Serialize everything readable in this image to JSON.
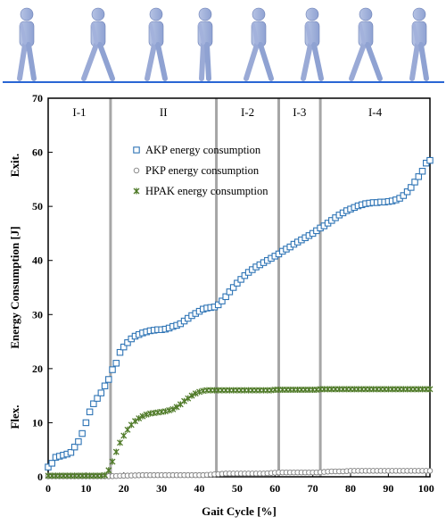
{
  "chart_data": {
    "type": "scatter",
    "xlabel": "Gait Cycle [%]",
    "ylabel": "Energy Consumption [J]",
    "ylabel_top": "Exit.",
    "ylabel_bottom": "Flex.",
    "xlim": [
      0,
      101
    ],
    "ylim": [
      0,
      70
    ],
    "xticks": [
      0,
      10,
      20,
      30,
      40,
      50,
      60,
      70,
      80,
      90,
      100
    ],
    "yticks": [
      0,
      10,
      20,
      30,
      40,
      50,
      60,
      70
    ],
    "grid": false,
    "legend_position": "upper-left",
    "phases": [
      {
        "label": "I-1",
        "start": 0,
        "end": 16.5
      },
      {
        "label": "II",
        "start": 16.5,
        "end": 44.5
      },
      {
        "label": "I-2",
        "start": 44.5,
        "end": 61
      },
      {
        "label": "I-3",
        "start": 61,
        "end": 72
      },
      {
        "label": "I-4",
        "start": 72,
        "end": 101
      }
    ],
    "phase_boundaries": [
      16.5,
      44.5,
      61,
      72
    ],
    "series": [
      {
        "name": "AKP energy consumption",
        "marker": "square",
        "color": "#2e74b5",
        "x": [
          0,
          1,
          2,
          3,
          4,
          5,
          6,
          7,
          8,
          9,
          10,
          11,
          12,
          13,
          14,
          15,
          16,
          17,
          18,
          19,
          20,
          21,
          22,
          23,
          24,
          25,
          26,
          27,
          28,
          29,
          30,
          31,
          32,
          33,
          34,
          35,
          36,
          37,
          38,
          39,
          40,
          41,
          42,
          43,
          44,
          45,
          46,
          47,
          48,
          49,
          50,
          51,
          52,
          53,
          54,
          55,
          56,
          57,
          58,
          59,
          60,
          61,
          62,
          63,
          64,
          65,
          66,
          67,
          68,
          69,
          70,
          71,
          72,
          73,
          74,
          75,
          76,
          77,
          78,
          79,
          80,
          81,
          82,
          83,
          84,
          85,
          86,
          87,
          88,
          89,
          90,
          91,
          92,
          93,
          94,
          95,
          96,
          97,
          98,
          99,
          100,
          101
        ],
        "y": [
          1.8,
          2.5,
          3.6,
          3.8,
          4.0,
          4.2,
          4.5,
          5.5,
          6.5,
          8.0,
          10.0,
          12.0,
          13.5,
          14.5,
          15.5,
          16.8,
          18.0,
          19.8,
          21.0,
          23.0,
          24.0,
          24.8,
          25.5,
          26.0,
          26.3,
          26.6,
          26.8,
          27.0,
          27.1,
          27.2,
          27.2,
          27.3,
          27.5,
          27.8,
          28.0,
          28.3,
          28.8,
          29.3,
          29.8,
          30.2,
          30.6,
          31.0,
          31.2,
          31.3,
          31.4,
          31.8,
          32.5,
          33.3,
          34.2,
          35.0,
          35.8,
          36.5,
          37.2,
          37.8,
          38.3,
          38.8,
          39.2,
          39.6,
          40.0,
          40.4,
          40.8,
          41.2,
          41.7,
          42.1,
          42.5,
          43.0,
          43.4,
          43.8,
          44.2,
          44.6,
          45.0,
          45.5,
          46.0,
          46.4,
          46.9,
          47.4,
          47.9,
          48.4,
          48.8,
          49.2,
          49.5,
          49.8,
          50.1,
          50.3,
          50.5,
          50.6,
          50.7,
          50.7,
          50.8,
          50.8,
          50.9,
          51.0,
          51.2,
          51.5,
          52.0,
          52.7,
          53.5,
          54.5,
          55.5,
          56.5,
          58.0,
          58.5
        ]
      },
      {
        "name": "PKP energy consumption",
        "marker": "circle",
        "color": "#7f7f7f",
        "x": [
          0,
          1,
          2,
          3,
          4,
          5,
          6,
          7,
          8,
          9,
          10,
          11,
          12,
          13,
          14,
          15,
          16,
          17,
          18,
          19,
          20,
          21,
          22,
          23,
          24,
          25,
          26,
          27,
          28,
          29,
          30,
          31,
          32,
          33,
          34,
          35,
          36,
          37,
          38,
          39,
          40,
          41,
          42,
          43,
          44,
          45,
          46,
          47,
          48,
          49,
          50,
          51,
          52,
          53,
          54,
          55,
          56,
          57,
          58,
          59,
          60,
          61,
          62,
          63,
          64,
          65,
          66,
          67,
          68,
          69,
          70,
          71,
          72,
          73,
          74,
          75,
          76,
          77,
          78,
          79,
          80,
          81,
          82,
          83,
          84,
          85,
          86,
          87,
          88,
          89,
          90,
          91,
          92,
          93,
          94,
          95,
          96,
          97,
          98,
          99,
          100,
          101
        ],
        "y": [
          0.1,
          0.1,
          0.1,
          0.1,
          0.1,
          0.1,
          0.1,
          0.1,
          0.1,
          0.1,
          0.1,
          0.1,
          0.1,
          0.1,
          0.1,
          0.1,
          0.1,
          0.12,
          0.15,
          0.18,
          0.2,
          0.22,
          0.24,
          0.26,
          0.28,
          0.3,
          0.3,
          0.3,
          0.3,
          0.3,
          0.3,
          0.3,
          0.3,
          0.3,
          0.3,
          0.3,
          0.3,
          0.3,
          0.3,
          0.3,
          0.3,
          0.3,
          0.35,
          0.4,
          0.45,
          0.5,
          0.55,
          0.6,
          0.6,
          0.6,
          0.6,
          0.6,
          0.6,
          0.6,
          0.6,
          0.6,
          0.6,
          0.6,
          0.65,
          0.7,
          0.75,
          0.8,
          0.8,
          0.8,
          0.8,
          0.8,
          0.8,
          0.8,
          0.8,
          0.8,
          0.8,
          0.8,
          0.85,
          0.9,
          0.95,
          1.0,
          1.0,
          1.0,
          1.0,
          1.05,
          1.1,
          1.1,
          1.1,
          1.1,
          1.1,
          1.1,
          1.1,
          1.1,
          1.1,
          1.1,
          1.1,
          1.1,
          1.1,
          1.1,
          1.1,
          1.1,
          1.1,
          1.1,
          1.1,
          1.1,
          1.1,
          1.1
        ]
      },
      {
        "name": "HPAK energy consumption",
        "marker": "star",
        "color": "#4f7a28",
        "x": [
          0,
          1,
          2,
          3,
          4,
          5,
          6,
          7,
          8,
          9,
          10,
          11,
          12,
          13,
          14,
          15,
          16,
          17,
          18,
          19,
          20,
          21,
          22,
          23,
          24,
          25,
          26,
          27,
          28,
          29,
          30,
          31,
          32,
          33,
          34,
          35,
          36,
          37,
          38,
          39,
          40,
          41,
          42,
          43,
          44,
          45,
          46,
          47,
          48,
          49,
          50,
          51,
          52,
          53,
          54,
          55,
          56,
          57,
          58,
          59,
          60,
          61,
          62,
          63,
          64,
          65,
          66,
          67,
          68,
          69,
          70,
          71,
          72,
          73,
          74,
          75,
          76,
          77,
          78,
          79,
          80,
          81,
          82,
          83,
          84,
          85,
          86,
          87,
          88,
          89,
          90,
          91,
          92,
          93,
          94,
          95,
          96,
          97,
          98,
          99,
          100,
          101
        ],
        "y": [
          0.2,
          0.2,
          0.2,
          0.2,
          0.2,
          0.2,
          0.2,
          0.2,
          0.2,
          0.2,
          0.2,
          0.2,
          0.2,
          0.2,
          0.2,
          0.3,
          1.2,
          2.8,
          4.6,
          6.3,
          7.6,
          8.7,
          9.6,
          10.3,
          10.8,
          11.2,
          11.5,
          11.7,
          11.8,
          11.9,
          12.0,
          12.1,
          12.3,
          12.5,
          12.9,
          13.4,
          14.0,
          14.5,
          15.0,
          15.4,
          15.7,
          15.9,
          16.0,
          16.0,
          16.0,
          16.0,
          16.0,
          16.0,
          16.0,
          16.0,
          16.0,
          16.0,
          16.0,
          16.0,
          16.0,
          16.0,
          16.0,
          16.0,
          16.0,
          16.0,
          16.1,
          16.1,
          16.1,
          16.1,
          16.1,
          16.1,
          16.1,
          16.1,
          16.1,
          16.1,
          16.1,
          16.1,
          16.2,
          16.2,
          16.2,
          16.2,
          16.2,
          16.2,
          16.2,
          16.2,
          16.2,
          16.2,
          16.2,
          16.2,
          16.2,
          16.2,
          16.2,
          16.2,
          16.2,
          16.2,
          16.2,
          16.2,
          16.2,
          16.2,
          16.2,
          16.2,
          16.2,
          16.2,
          16.2,
          16.2,
          16.2,
          16.2
        ]
      }
    ]
  }
}
